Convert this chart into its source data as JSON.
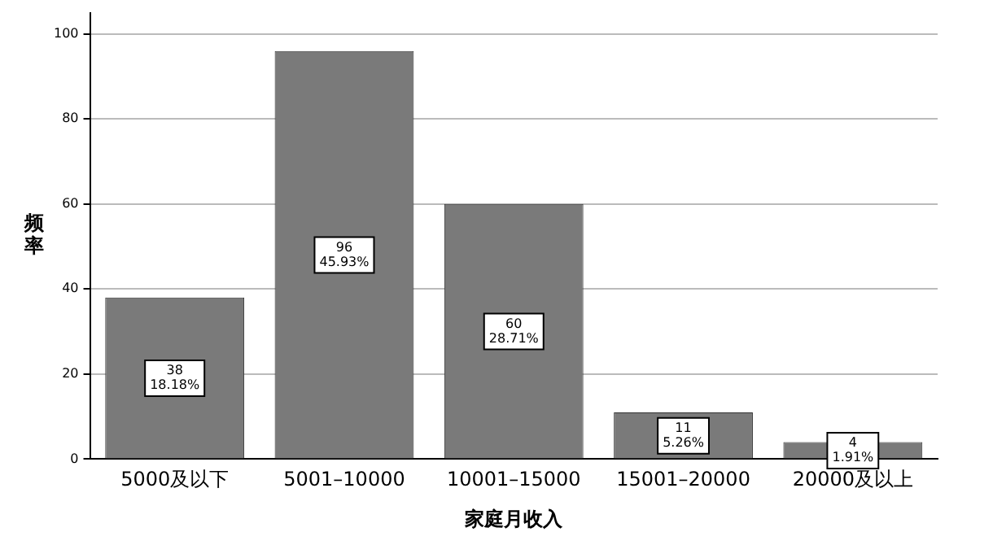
{
  "chart_data": {
    "type": "bar",
    "xlabel": "家庭月收入",
    "ylabel": "频率",
    "categories": [
      "5000及以下",
      "5001–10000",
      "10001–15000",
      "15001–20000",
      "20000及以上"
    ],
    "values": [
      38,
      96,
      60,
      11,
      4
    ],
    "value_labels": [
      "38\n18.18%",
      "96\n45.93%",
      "60\n28.71%",
      "11\n5.26%",
      "4\n1.91%"
    ],
    "color": "#7a7a7a",
    "ylim": [
      0,
      105
    ],
    "yticks": [
      0,
      20,
      40,
      60,
      80,
      100
    ],
    "grid": "y",
    "legend": false
  }
}
